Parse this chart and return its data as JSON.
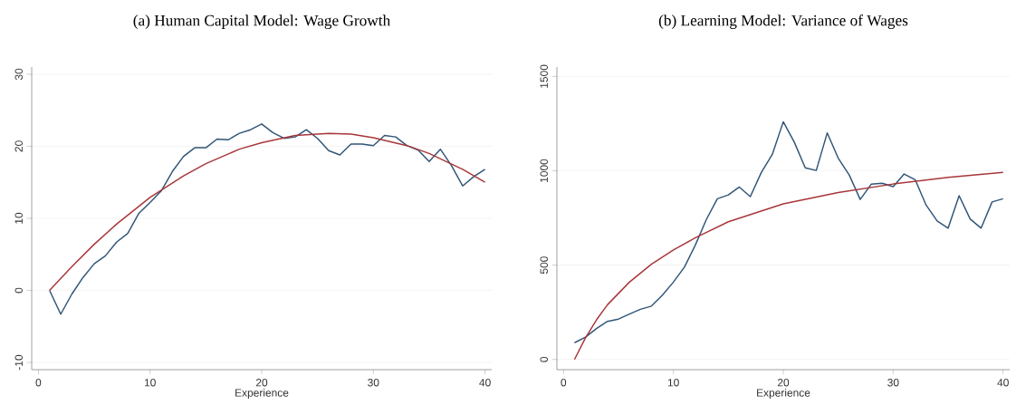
{
  "chart_data": [
    {
      "type": "line",
      "title": "(a) Human Capital Model: Wage Growth",
      "xlabel": "Experience",
      "grid": "y",
      "xlim": [
        -0.6,
        40.6
      ],
      "ylim": [
        -11,
        31
      ],
      "xticks": [
        0,
        10,
        20,
        30,
        40
      ],
      "yticks": [
        -10,
        0,
        10,
        20,
        30
      ],
      "x": [
        1,
        2,
        3,
        4,
        5,
        6,
        7,
        8,
        9,
        10,
        11,
        12,
        13,
        14,
        15,
        16,
        17,
        18,
        19,
        20,
        21,
        22,
        23,
        24,
        25,
        26,
        27,
        28,
        29,
        30,
        31,
        32,
        33,
        34,
        35,
        36,
        37,
        38,
        39,
        40
      ],
      "series": [
        {
          "color": "#2f5577",
          "values": [
            0,
            -3.3,
            -0.5,
            1.8,
            3.7,
            4.8,
            6.7,
            7.9,
            10.7,
            12.2,
            13.8,
            16.5,
            18.6,
            19.8,
            19.8,
            21.0,
            20.9,
            21.8,
            22.3,
            23.1,
            21.9,
            21.1,
            21.3,
            22.3,
            21.1,
            19.4,
            18.8,
            20.3,
            20.3,
            20.1,
            21.5,
            21.3,
            20.1,
            19.5,
            17.9,
            19.6,
            17.3,
            14.5,
            15.8,
            16.8
          ]
        },
        {
          "color": "#a8363a",
          "x": [
            1,
            3,
            5,
            7,
            10,
            13,
            15,
            18,
            20,
            23,
            26,
            28,
            30,
            33,
            35,
            38,
            40
          ],
          "values": [
            0,
            3.3,
            6.4,
            9.2,
            12.9,
            15.9,
            17.6,
            19.6,
            20.5,
            21.5,
            21.8,
            21.7,
            21.2,
            20.1,
            19.0,
            16.8,
            15.0
          ]
        }
      ]
    },
    {
      "type": "line",
      "title": "(b) Learning Model: Variance of Wages",
      "xlabel": "Experience",
      "grid": "y",
      "xlim": [
        -0.6,
        40.6
      ],
      "ylim": [
        -54,
        1550
      ],
      "xticks": [
        0,
        10,
        20,
        30,
        40
      ],
      "yticks": [
        0,
        500,
        1000,
        1500
      ],
      "x": [
        1,
        2,
        3,
        4,
        5,
        6,
        7,
        8,
        9,
        10,
        11,
        12,
        13,
        14,
        15,
        16,
        17,
        18,
        19,
        20,
        21,
        22,
        23,
        24,
        25,
        26,
        27,
        28,
        29,
        30,
        31,
        32,
        33,
        34,
        35,
        36,
        37,
        38,
        39,
        40
      ],
      "series": [
        {
          "color": "#2f5577",
          "values": [
            89,
            118,
            164,
            202,
            214,
            241,
            266,
            283,
            341,
            410,
            489,
            607,
            742,
            852,
            872,
            914,
            863,
            991,
            1087,
            1260,
            1152,
            1016,
            1002,
            1201,
            1067,
            978,
            848,
            929,
            934,
            916,
            983,
            953,
            818,
            734,
            696,
            868,
            745,
            696,
            835,
            852
          ]
        },
        {
          "color": "#a8363a",
          "x": [
            1,
            2,
            3,
            4,
            6,
            8,
            10,
            12,
            15,
            20,
            25,
            30,
            35,
            40
          ],
          "values": [
            0,
            115,
            210,
            290,
            410,
            505,
            580,
            645,
            730,
            825,
            885,
            930,
            965,
            992
          ]
        }
      ]
    }
  ]
}
